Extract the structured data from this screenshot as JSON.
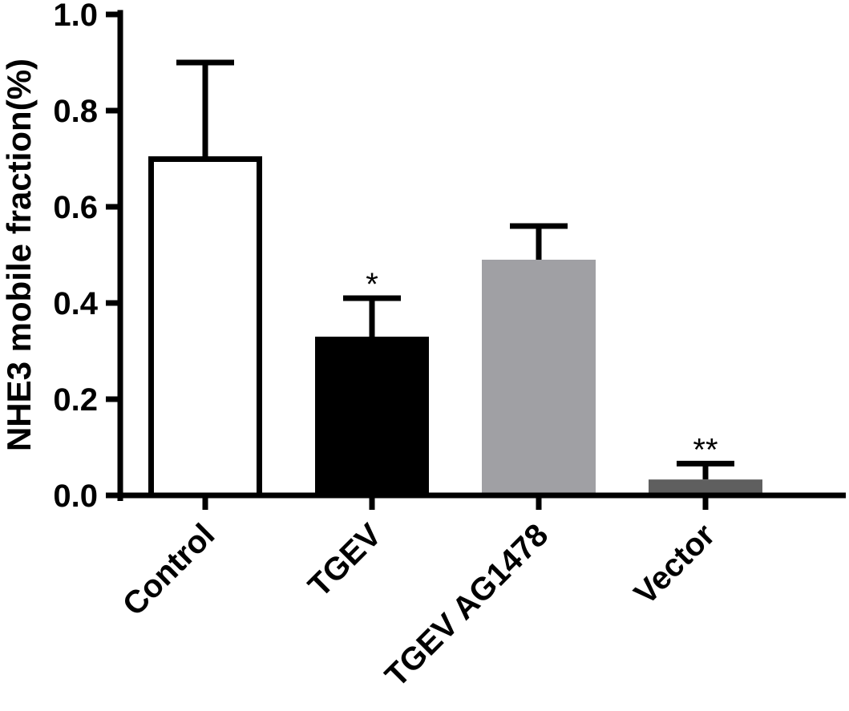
{
  "chart_data": {
    "type": "bar",
    "title": "",
    "xlabel": "",
    "ylabel": "NHE3 mobile fraction(%)",
    "ylim": [
      0,
      1.0
    ],
    "yticks": [
      "0.0",
      "0.2",
      "0.4",
      "0.6",
      "0.8",
      "1.0"
    ],
    "categories": [
      "Control",
      "TGEV",
      "TGEV AG1478",
      "Vector"
    ],
    "values": [
      0.705,
      0.33,
      0.49,
      0.033
    ],
    "errors": [
      0.195,
      0.08,
      0.07,
      0.033
    ],
    "significance": [
      "",
      "*",
      "",
      "**"
    ],
    "colors": {
      "fills": [
        "#ffffff",
        "#000000",
        "#a0a0a4",
        "#5f5f5f"
      ],
      "stroke": "#000000",
      "axis": "#000000"
    },
    "grid": false,
    "legend": "none"
  }
}
